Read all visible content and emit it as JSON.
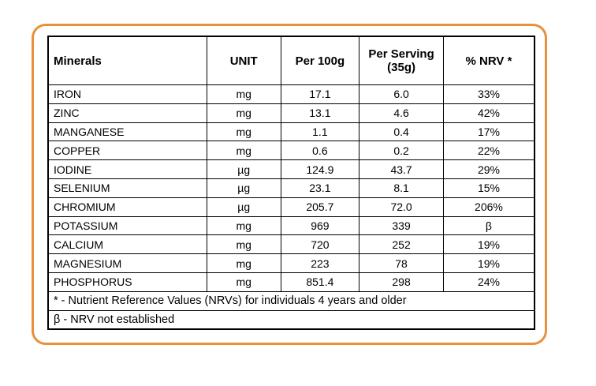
{
  "table": {
    "header": [
      "Minerals",
      "UNIT",
      "Per 100g",
      "Per Serving (35g)",
      "% NRV *"
    ],
    "rows": [
      [
        "IRON",
        "mg",
        "17.1",
        "6.0",
        "33%"
      ],
      [
        "ZINC",
        "mg",
        "13.1",
        "4.6",
        "42%"
      ],
      [
        "MANGANESE",
        "mg",
        "1.1",
        "0.4",
        "17%"
      ],
      [
        "COPPER",
        "mg",
        "0.6",
        "0.2",
        "22%"
      ],
      [
        "IODINE",
        "µg",
        "124.9",
        "43.7",
        "29%"
      ],
      [
        "SELENIUM",
        "µg",
        "23.1",
        "8.1",
        "15%"
      ],
      [
        "CHROMIUM",
        "µg",
        "205.7",
        "72.0",
        "206%"
      ],
      [
        "POTASSIUM",
        "mg",
        "969",
        "339",
        "β"
      ],
      [
        "CALCIUM",
        "mg",
        "720",
        "252",
        "19%"
      ],
      [
        "MAGNESIUM",
        "mg",
        "223",
        "78",
        "19%"
      ],
      [
        "PHOSPHORUS",
        "mg",
        "851.4",
        "298",
        "24%"
      ]
    ],
    "footnotes": [
      "* - Nutrient Reference Values (NRVs) for individuals 4 years and older",
      "β - NRV not established"
    ]
  }
}
